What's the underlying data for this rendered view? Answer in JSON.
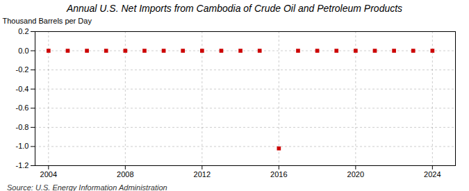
{
  "chart_data": {
    "type": "scatter",
    "title": "Annual U.S. Net Imports from Cambodia of Crude Oil and Petroleum Products",
    "ylabel": "Thousand Barrels per Day",
    "source": "Source: U.S. Energy Information Administration",
    "x": [
      2004,
      2005,
      2006,
      2007,
      2008,
      2009,
      2010,
      2011,
      2012,
      2013,
      2014,
      2015,
      2016,
      2017,
      2018,
      2019,
      2020,
      2021,
      2022,
      2023,
      2024
    ],
    "values": [
      0,
      0,
      0,
      0,
      0,
      0,
      0,
      0,
      0,
      0,
      0,
      0,
      -1.02,
      0,
      0,
      0,
      0,
      0,
      0,
      0,
      0
    ],
    "color": "#cc0000",
    "marker": "square",
    "xlim": [
      2003.3,
      2025.2
    ],
    "xticks": [
      2004,
      2008,
      2012,
      2016,
      2020,
      2024
    ],
    "ylim": [
      -1.2,
      0.2
    ],
    "yticks": [
      0.2,
      {
        "value": 0.0,
        "label": "0.0"
      },
      -0.2,
      -0.4,
      -0.6,
      -0.8,
      {
        "value": -1.0,
        "label": "-1.0"
      },
      -1.2
    ],
    "grid": true
  }
}
